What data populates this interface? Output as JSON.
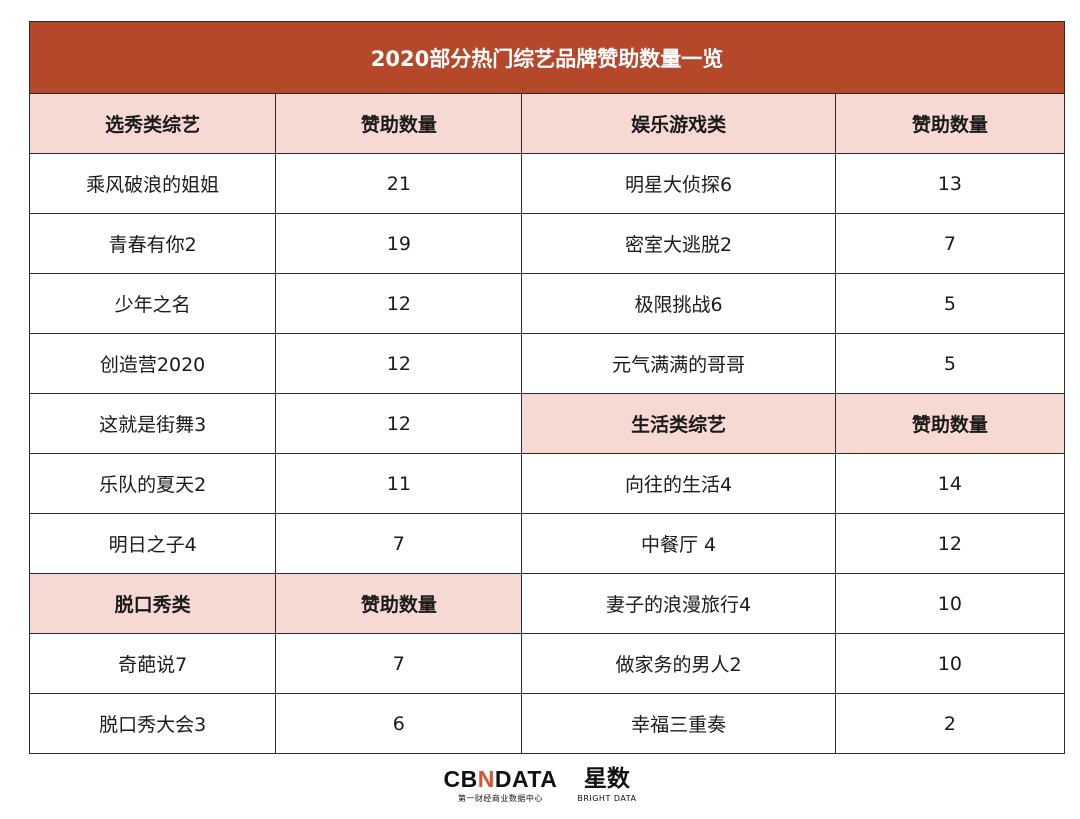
{
  "title": "2020部分热门综艺品牌赞助数量一览",
  "sections": {
    "talent_show": {
      "category": "选秀类综艺",
      "count_header": "赞助数量",
      "rows": [
        {
          "name": "乘风破浪的姐姐",
          "count": "21"
        },
        {
          "name": "青春有你2",
          "count": "19"
        },
        {
          "name": "少年之名",
          "count": "12"
        },
        {
          "name": "创造营2020",
          "count": "12"
        },
        {
          "name": "这就是街舞3",
          "count": "12"
        },
        {
          "name": "乐队的夏天2",
          "count": "11"
        },
        {
          "name": "明日之子4",
          "count": "7"
        }
      ]
    },
    "talk_show": {
      "category": "脱口秀类",
      "count_header": "赞助数量",
      "rows": [
        {
          "name": "奇葩说7",
          "count": "7"
        },
        {
          "name": "脱口秀大会3",
          "count": "6"
        }
      ]
    },
    "entertainment_game": {
      "category": "娱乐游戏类",
      "count_header": "赞助数量",
      "rows": [
        {
          "name": "明星大侦探6",
          "count": "13"
        },
        {
          "name": "密室大逃脱2",
          "count": "7"
        },
        {
          "name": "极限挑战6",
          "count": "5"
        },
        {
          "name": "元气满满的哥哥",
          "count": "5"
        }
      ]
    },
    "lifestyle": {
      "category": "生活类综艺",
      "count_header": "赞助数量",
      "rows": [
        {
          "name": "向往的生活4",
          "count": "14"
        },
        {
          "name": "中餐厅 4",
          "count": "12"
        },
        {
          "name": "妻子的浪漫旅行4",
          "count": "10"
        },
        {
          "name": "做家务的男人2",
          "count": "10"
        },
        {
          "name": "幸福三重奏",
          "count": "2"
        }
      ]
    }
  },
  "footer": {
    "cbndata_logo_prefix": "CB",
    "cbndata_logo_accent": "N",
    "cbndata_logo_suffix": "DATA",
    "cbndata_tagline": "第一财经商业数据中心",
    "brightdata_logo_cn": "星数",
    "brightdata_logo_en": "BRIGHT DATA"
  },
  "colors": {
    "title_bar": "#b5482a",
    "header_fill": "#f6d9d2",
    "logo_accent": "#d9542c"
  }
}
